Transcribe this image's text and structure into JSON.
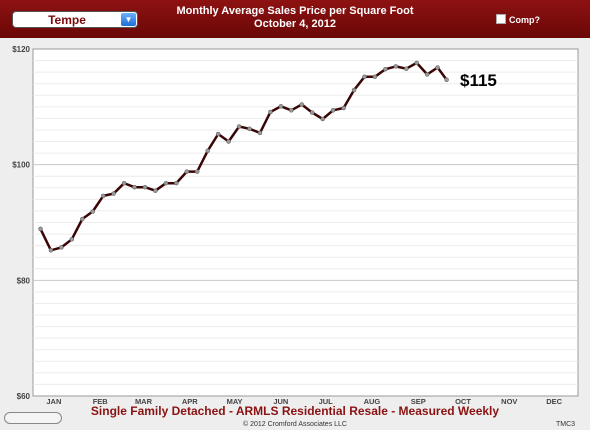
{
  "area_selector": {
    "value": "Tempe"
  },
  "header": {
    "title": "Monthly Average Sales Price per Square Foot",
    "date": "October 4, 2012",
    "comp_label": "Comp?"
  },
  "footer": {
    "subtitle": "Single Family Detached - ARMLS Residential Resale - Measured Weekly",
    "copyright": "© 2012 Cromford Associates LLC",
    "code": "TMC3"
  },
  "colors": {
    "header_bg": "#7a0a0a",
    "line": "#3a0505",
    "marker": "#9a9a9a",
    "subtitle": "#8a1212"
  },
  "chart_data": {
    "type": "line",
    "x_start": "2012-01-01",
    "x_end": "2012-12-31",
    "ylim": [
      60,
      120
    ],
    "y_ticks": [
      60,
      80,
      100,
      120
    ],
    "y_tick_labels": [
      "$60",
      "$80",
      "$100",
      "$120"
    ],
    "x_tick_labels": [
      "JAN",
      "FEB",
      "MAR",
      "APR",
      "MAY",
      "JUN",
      "JUL",
      "AUG",
      "SEP",
      "OCT",
      "NOV",
      "DEC"
    ],
    "grid": true,
    "annotation": "$115",
    "series": [
      {
        "x": [
          "2012-01-06",
          "2012-01-13",
          "2012-01-20",
          "2012-01-27",
          "2012-02-03",
          "2012-02-10",
          "2012-02-17",
          "2012-02-24",
          "2012-03-02",
          "2012-03-09",
          "2012-03-16",
          "2012-03-23",
          "2012-03-30",
          "2012-04-06",
          "2012-04-13",
          "2012-04-20",
          "2012-04-27",
          "2012-05-04",
          "2012-05-11",
          "2012-05-18",
          "2012-05-25",
          "2012-06-01",
          "2012-06-08",
          "2012-06-15",
          "2012-06-22",
          "2012-06-29",
          "2012-07-06",
          "2012-07-13",
          "2012-07-20",
          "2012-07-27",
          "2012-08-03",
          "2012-08-10",
          "2012-08-17",
          "2012-08-24",
          "2012-08-31",
          "2012-09-07",
          "2012-09-14",
          "2012-09-21",
          "2012-09-28",
          "2012-10-04"
        ],
        "values": [
          88.9,
          85.2,
          85.7,
          87.1,
          90.6,
          91.9,
          94.6,
          95.0,
          96.8,
          96.1,
          96.1,
          95.5,
          96.8,
          96.8,
          98.8,
          98.8,
          102.4,
          105.3,
          104.0,
          106.6,
          106.2,
          105.5,
          109.1,
          110.1,
          109.4,
          110.4,
          109.0,
          107.9,
          109.4,
          109.8,
          112.9,
          115.2,
          115.2,
          116.5,
          117.0,
          116.6,
          117.6,
          115.6,
          116.8,
          114.7
        ]
      }
    ]
  }
}
